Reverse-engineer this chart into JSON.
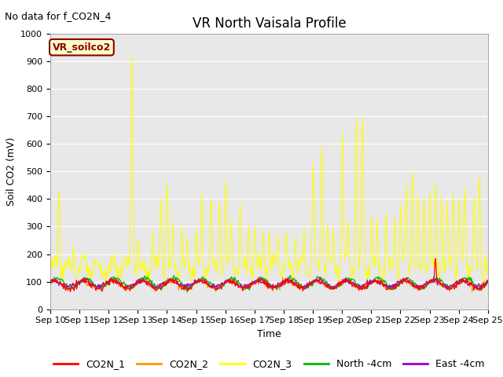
{
  "title": "VR North Vaisala Profile",
  "subtitle": "No data for f_CO2N_4",
  "ylabel": "Soil CO2 (mV)",
  "xlabel": "Time",
  "box_label": "VR_soilco2",
  "ylim": [
    0,
    1000
  ],
  "x_tick_labels": [
    "Sep 10",
    "Sep 11",
    "Sep 12",
    "Sep 13",
    "Sep 14",
    "Sep 15",
    "Sep 16",
    "Sep 17",
    "Sep 18",
    "Sep 19",
    "Sep 20",
    "Sep 21",
    "Sep 22",
    "Sep 23",
    "Sep 24",
    "Sep 25"
  ],
  "legend_entries": [
    {
      "label": "CO2N_1",
      "color": "#ff0000"
    },
    {
      "label": "CO2N_2",
      "color": "#ff9900"
    },
    {
      "label": "CO2N_3",
      "color": "#ffff00"
    },
    {
      "label": "North -4cm",
      "color": "#00bb00"
    },
    {
      "label": "East -4cm",
      "color": "#9900cc"
    }
  ],
  "bg_color": "#e8e8e8",
  "title_fontsize": 12,
  "subtitle_fontsize": 9,
  "axis_fontsize": 9,
  "tick_fontsize": 8,
  "legend_fontsize": 9
}
